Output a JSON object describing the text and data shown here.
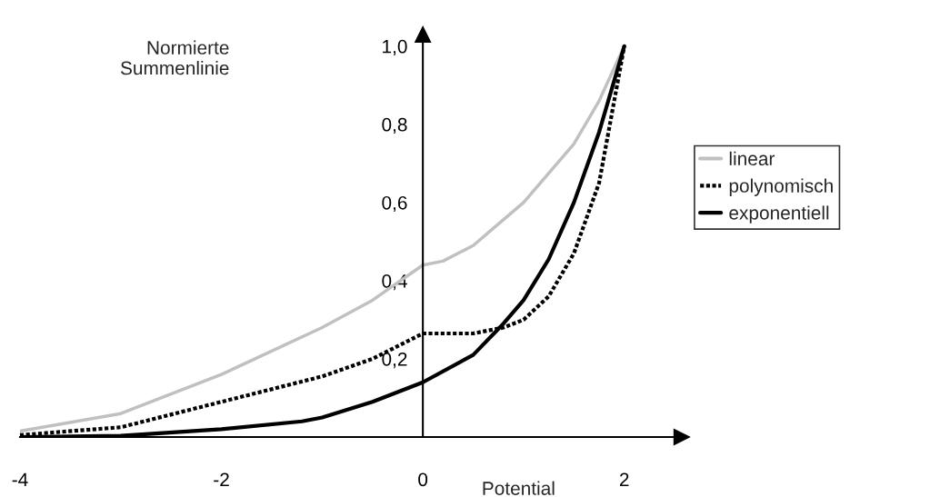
{
  "chart_data": {
    "type": "line",
    "xlabel": "Potential",
    "ylabel": "Normierte\nSummenlinie",
    "xlim": [
      -4,
      2.57
    ],
    "ylim": [
      0,
      1.03
    ],
    "xticks": [
      -4,
      -2,
      0,
      2
    ],
    "yticks": [
      {
        "value": 0.2,
        "label": "0,2"
      },
      {
        "value": 0.4,
        "label": "0,4"
      },
      {
        "value": 0.6,
        "label": "0,6"
      },
      {
        "value": 0.8,
        "label": "0,8"
      },
      {
        "value": 1.0,
        "label": "1,0"
      }
    ],
    "grid": false,
    "legend": "right",
    "marker": "none",
    "series": [
      {
        "name": "linear",
        "color": "#c0c0c0",
        "line_style": "solid",
        "x": [
          -4,
          -3,
          -2,
          -1,
          -0.5,
          0,
          0.2,
          0.5,
          1,
          1.5,
          1.75,
          2
        ],
        "values": [
          0.015,
          0.06,
          0.16,
          0.28,
          0.35,
          0.44,
          0.45,
          0.49,
          0.6,
          0.75,
          0.86,
          1.0
        ]
      },
      {
        "name": "polynomisch",
        "color": "#000000",
        "line_style": "dotted",
        "x": [
          -4,
          -3,
          -2,
          -1,
          -0.5,
          0,
          0.5,
          0.8,
          1,
          1.25,
          1.5,
          1.75,
          2
        ],
        "values": [
          0.005,
          0.025,
          0.09,
          0.155,
          0.2,
          0.265,
          0.265,
          0.28,
          0.3,
          0.36,
          0.47,
          0.65,
          1.0
        ]
      },
      {
        "name": "exponentiell",
        "color": "#000000",
        "line_style": "solid",
        "x": [
          -4,
          -3,
          -2,
          -1.2,
          -1,
          -0.5,
          0,
          0.5,
          0.8,
          1,
          1.25,
          1.5,
          1.75,
          2
        ],
        "values": [
          0,
          0.003,
          0.02,
          0.04,
          0.05,
          0.09,
          0.14,
          0.21,
          0.29,
          0.35,
          0.455,
          0.6,
          0.78,
          1.0
        ]
      }
    ]
  }
}
